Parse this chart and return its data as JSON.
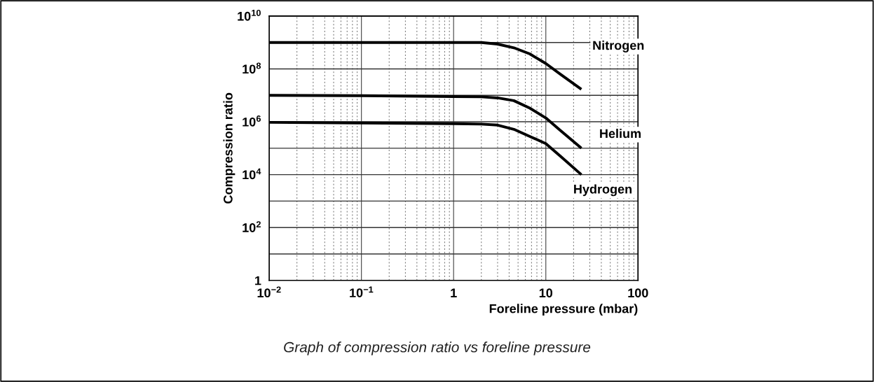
{
  "chart_data": {
    "type": "line",
    "xlabel": "Foreline pressure (mbar)",
    "ylabel": "Compression ratio",
    "annotations": [
      "Graph of compression ratio vs foreline pressure"
    ],
    "log": "xy",
    "grid": true,
    "marker": "none",
    "line_style": "solid",
    "xlim": [
      0.01,
      100
    ],
    "ylim": [
      1,
      10000000000
    ],
    "xticks": [
      {
        "value": 0.01,
        "label": "10$^{−2}$"
      },
      {
        "value": 0.1,
        "label": "10$^{−1}$"
      },
      1,
      10,
      100
    ],
    "yticks": [
      1,
      {
        "value": 10,
        "label": null
      },
      {
        "value": 100,
        "label": "10$^{2}$"
      },
      {
        "value": 1000,
        "label": null
      },
      {
        "value": 10000,
        "label": "10$^{4}$"
      },
      {
        "value": 100000,
        "label": null
      },
      {
        "value": 1000000,
        "label": "10$^{6}$"
      },
      {
        "value": 10000000,
        "label": null
      },
      {
        "value": 100000000,
        "label": "10$^{8}$"
      },
      {
        "value": 1000000000,
        "label": null
      },
      {
        "value": 10000000000,
        "label": "10$^{10}$"
      }
    ],
    "series": [
      {
        "name": "Nitrogen",
        "color": "#000000",
        "x": [
          0.01,
          0.1,
          1,
          2,
          3,
          4.5,
          6.7,
          10,
          14.4,
          24.3
        ],
        "values": [
          1000000000,
          1000000000,
          1000000000,
          1000000000,
          870000000,
          630000000,
          370000000,
          160000000,
          63000000,
          17000000
        ]
      },
      {
        "name": "Helium",
        "color": "#000000",
        "x": [
          0.01,
          0.1,
          1,
          2,
          3,
          4.5,
          6.7,
          10,
          14.4,
          24.3
        ],
        "values": [
          10000000,
          9700000,
          9000000,
          8800000,
          8000000,
          6300000,
          3300000,
          1400000,
          470000,
          100000
        ]
      },
      {
        "name": "Hydrogen",
        "color": "#000000",
        "x": [
          0.01,
          0.1,
          1,
          2,
          3,
          4.5,
          6.7,
          10,
          14.4,
          24.3
        ],
        "values": [
          950000,
          900000,
          850000,
          820000,
          750000,
          520000,
          280000,
          150000,
          50000,
          10000
        ]
      }
    ]
  }
}
